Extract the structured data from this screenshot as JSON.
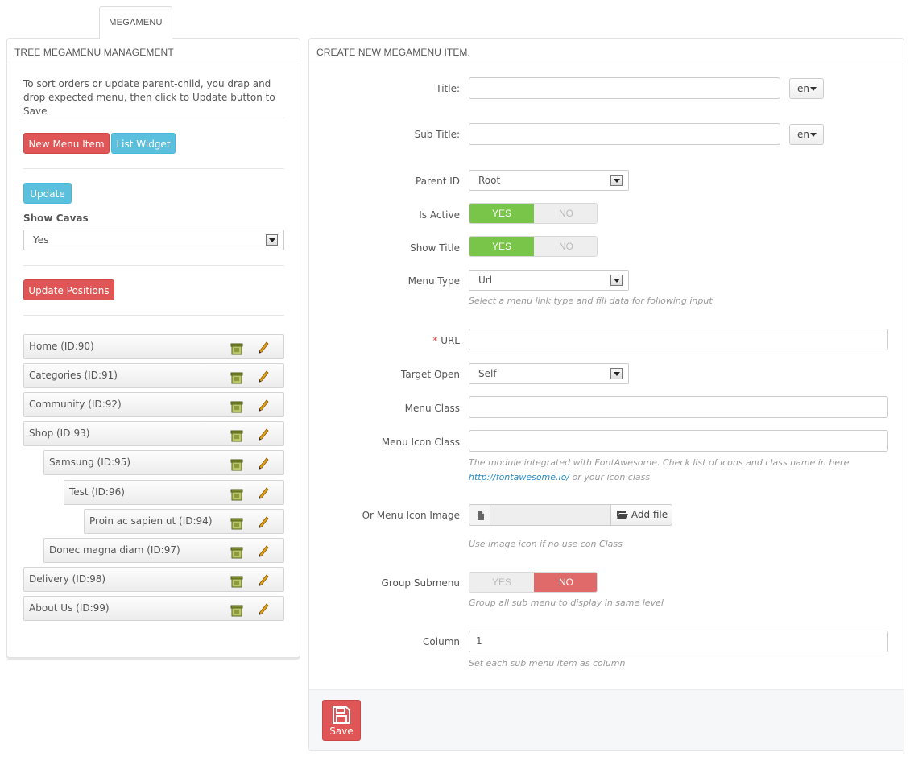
{
  "tab": {
    "label": "MEGAMENU"
  },
  "left": {
    "heading": "TREE MEGAMENU MANAGEMENT",
    "intro": "To sort orders or update parent-child, you drap and drop expected menu, then click to Update button to Save",
    "new_menu_item": "New Menu Item",
    "list_widget": "List Widget",
    "update": "Update",
    "show_cavas_label": "Show Cavas",
    "show_cavas_value": "Yes",
    "update_positions": "Update Positions",
    "tree": [
      {
        "label": "Home (ID:90)"
      },
      {
        "label": "Categories (ID:91)"
      },
      {
        "label": "Community (ID:92)"
      },
      {
        "label": "Shop (ID:93)"
      },
      {
        "label": "Samsung (ID:95)"
      },
      {
        "label": "Test (ID:96)"
      },
      {
        "label": "Proin ac sapien ut (ID:94)"
      },
      {
        "label": "Donec magna diam (ID:97)"
      },
      {
        "label": "Delivery (ID:98)"
      },
      {
        "label": "About Us (ID:99)"
      }
    ]
  },
  "right": {
    "heading": "CREATE NEW MEGAMENU ITEM.",
    "title_label": "Title:",
    "title_value": "",
    "lang": "en",
    "subtitle_label": "Sub Title:",
    "subtitle_value": "",
    "parent_label": "Parent ID",
    "parent_value": "Root",
    "active_label": "Is Active",
    "show_title_label": "Show Title",
    "yes": "YES",
    "no": "NO",
    "menu_type_label": "Menu Type",
    "menu_type_value": "Url",
    "menu_type_help": "Select a menu link type and fill data for following input",
    "url_required": "*",
    "url_label": "URL",
    "url_value": "",
    "target_label": "Target Open",
    "target_value": "Self",
    "class_label": "Menu Class",
    "class_value": "",
    "icon_class_label": "Menu Icon Class",
    "icon_class_value": "",
    "icon_help_1": "The module integrated with FontAwesome. Check list of icons and class name in here",
    "icon_help_link": "http://fontawesome.io/",
    "icon_help_2": " or your icon class",
    "icon_image_label": "Or Menu Icon Image",
    "add_file": "Add file",
    "icon_image_help": "Use image icon if no use con Class",
    "group_label": "Group Submenu",
    "group_help": "Group all sub menu to display in same level",
    "column_label": "Column",
    "column_value": "1",
    "column_help": "Set each sub menu item as column",
    "save": "Save"
  },
  "colors": {
    "red": "#e05656",
    "blue": "#5bc0de",
    "green": "#78c549"
  }
}
